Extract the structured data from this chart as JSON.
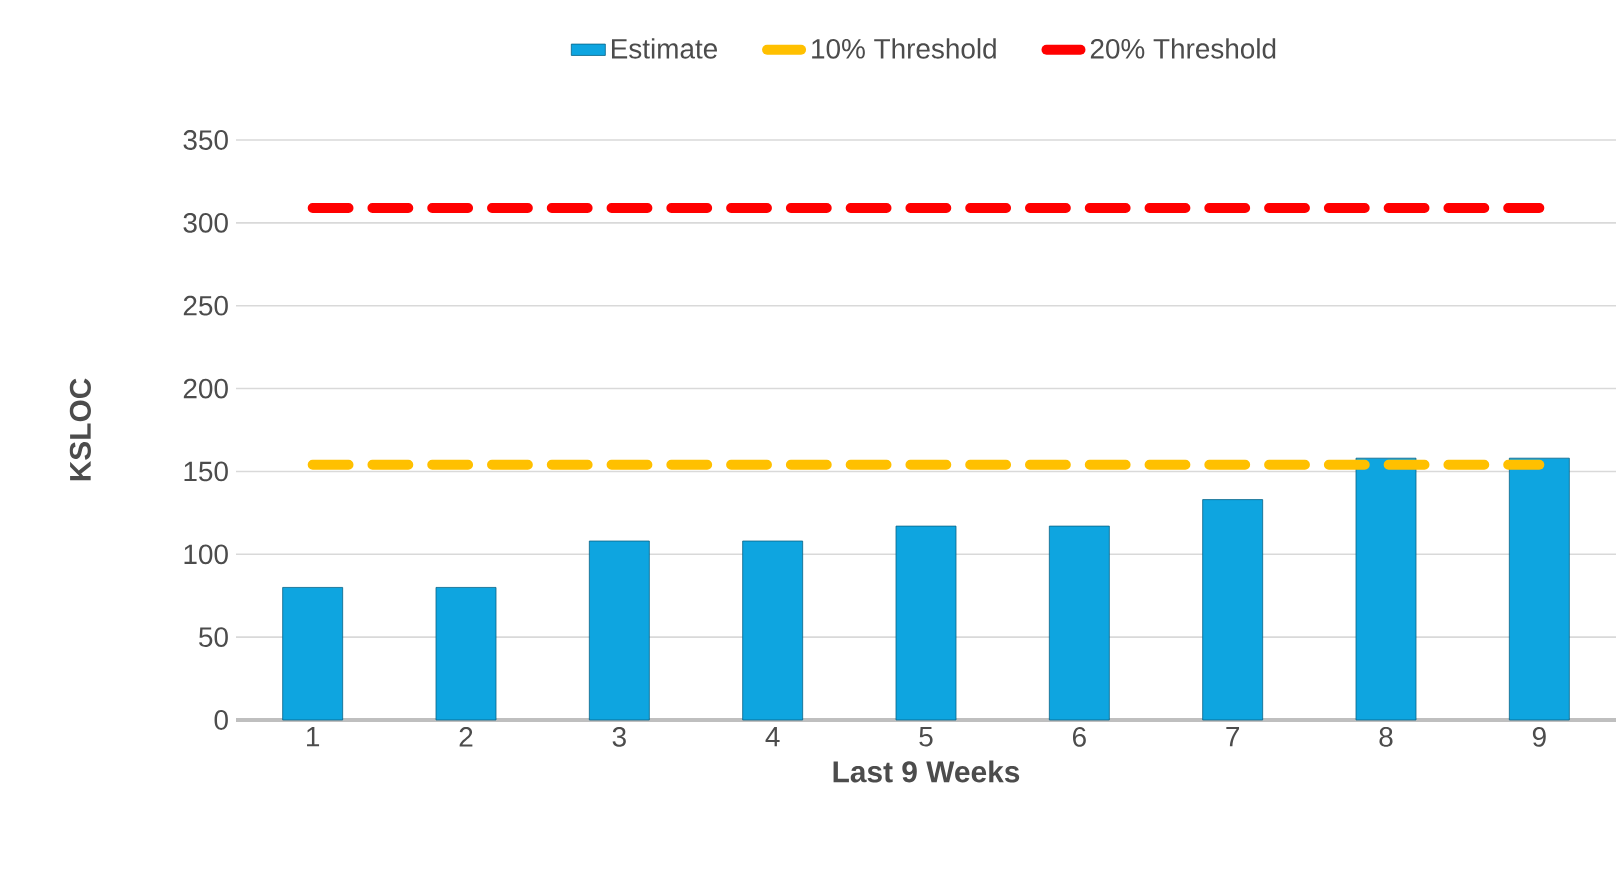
{
  "chart_data": {
    "type": "bar",
    "xlabel": "Last 9 Weeks",
    "ylabel": "KSLOC",
    "categories": [
      "1",
      "2",
      "3",
      "4",
      "5",
      "6",
      "7",
      "8",
      "9"
    ],
    "series": [
      {
        "name": "Estimate",
        "color": "#0ea5e0",
        "values": [
          80,
          80,
          108,
          108,
          117,
          117,
          133,
          158,
          158
        ]
      },
      {
        "name": "10% Threshold",
        "type": "line",
        "color": "#ffc000",
        "values": [
          154,
          154,
          154,
          154,
          154,
          154,
          154,
          154,
          154
        ]
      },
      {
        "name": "20% Threshold",
        "type": "line",
        "color": "#ff0000",
        "values": [
          309,
          309,
          309,
          309,
          309,
          309,
          309,
          309,
          309
        ]
      }
    ],
    "ylim": [
      0,
      350
    ],
    "yticks": [
      0,
      50,
      100,
      150,
      200,
      250,
      300,
      350
    ],
    "grid": "y",
    "legend": "top",
    "line_style": "dashed",
    "marker": "none"
  }
}
